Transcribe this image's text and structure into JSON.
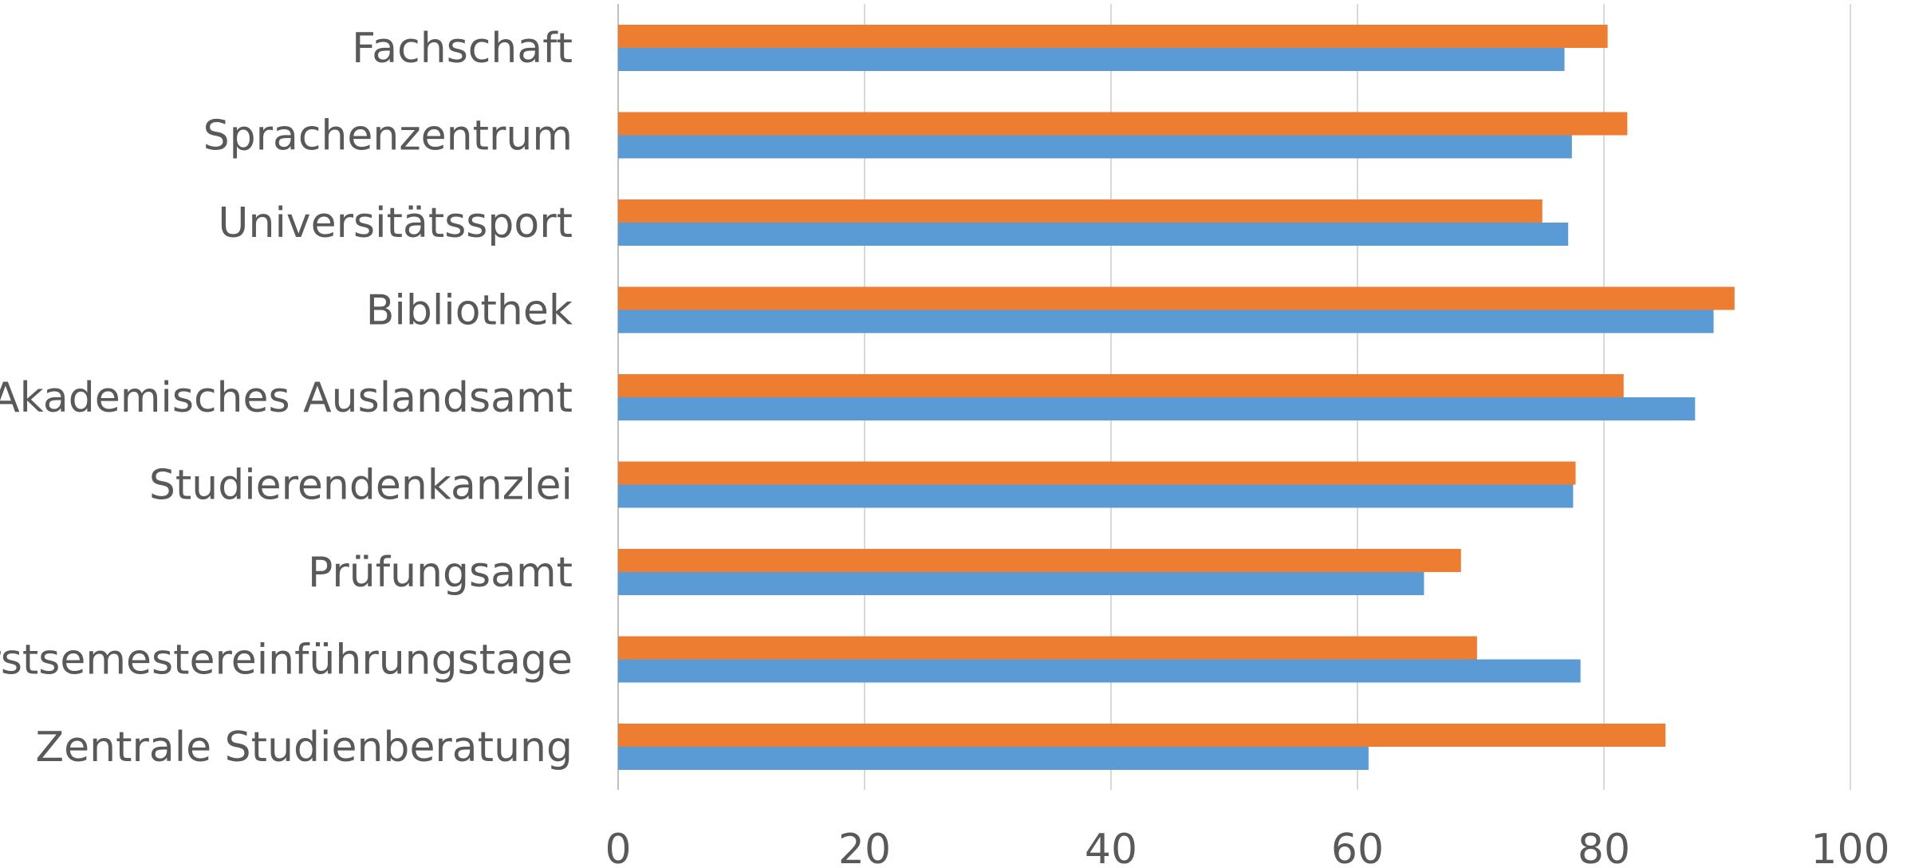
{
  "chart_data": {
    "type": "bar",
    "orientation": "horizontal",
    "title": "",
    "xlabel": "",
    "ylabel": "",
    "xlim": [
      0,
      100
    ],
    "x_ticks": [
      0,
      20,
      40,
      60,
      80,
      100
    ],
    "grid": true,
    "legend": "none",
    "categories": [
      "Fachschaft",
      "Sprachenzentrum",
      "Universitätssport",
      "Bibliothek",
      "Akademisches Auslandsamt",
      "Studierendenkanzlei",
      "Prüfungsamt",
      "Erstsemestereinführungstage",
      "Zentrale Studienberatung"
    ],
    "series": [
      {
        "color": "#ed7d31",
        "values": [
          80.3,
          81.9,
          75.0,
          90.6,
          81.6,
          77.7,
          68.4,
          69.7,
          85.0
        ]
      },
      {
        "color": "#5b9bd5",
        "values": [
          76.8,
          77.4,
          77.1,
          88.9,
          87.4,
          77.5,
          65.4,
          78.1,
          60.9
        ]
      }
    ]
  }
}
